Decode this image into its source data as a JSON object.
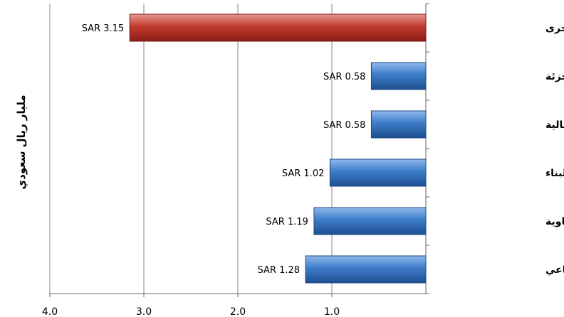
{
  "chart_data": {
    "type": "bar",
    "orientation": "horizontal",
    "x_axis_reversed": true,
    "categories": [
      "قطاعات اخرى",
      "التجزئة",
      "المصارف والخدمات المالية",
      "التشييد والبناء",
      "الصناعات والبتروكيماوية",
      "الأستثمار الصناعي"
    ],
    "values": [
      3.15,
      0.58,
      0.58,
      1.02,
      1.19,
      1.28
    ],
    "value_labels": [
      "SAR 3.15",
      "SAR 0.58",
      "SAR 0.58",
      "SAR 1.02",
      "SAR 1.19",
      "SAR 1.28"
    ],
    "bar_colors": [
      "#c0392b",
      "#3b78c4",
      "#3b78c4",
      "#3b78c4",
      "#3b78c4",
      "#3b78c4"
    ],
    "xlim": [
      0,
      4
    ],
    "x_ticks": [
      4,
      3,
      2,
      1
    ],
    "x_tick_labels": [
      "4.0",
      "3.0",
      "2.0",
      "1.0"
    ],
    "ylabel": "مليار ريال سعودي",
    "grid": true
  }
}
